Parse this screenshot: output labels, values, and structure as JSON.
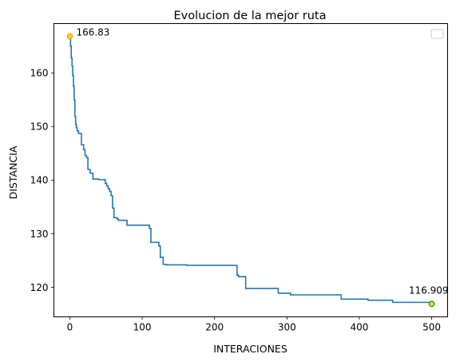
{
  "chart_data": {
    "type": "line",
    "title": "Evolucion de la mejor ruta",
    "xlabel": "INTERACIONES",
    "ylabel": "DISTANCIA",
    "xlim": [
      -22,
      522
    ],
    "ylim": [
      114.5,
      169.2
    ],
    "xticks": [
      0,
      100,
      200,
      300,
      400,
      500
    ],
    "yticks": [
      120,
      130,
      140,
      150,
      160
    ],
    "grid": false,
    "legend": "top-right (empty)",
    "series": [
      {
        "color": "#1f77b4",
        "step": true,
        "x": [
          0,
          1,
          2,
          3,
          4,
          5,
          6,
          7,
          8,
          9,
          10,
          12,
          16,
          19,
          21,
          23,
          25,
          28,
          32,
          36,
          40,
          49,
          51,
          53,
          55,
          57,
          59,
          61,
          65,
          67,
          72,
          79,
          94,
          110,
          112,
          114,
          123,
          125,
          127,
          129,
          133,
          162,
          231,
          233,
          243,
          288,
          305,
          375,
          412,
          446,
          500
        ],
        "y": [
          166.83,
          165.0,
          162.8,
          161.3,
          159.5,
          157.5,
          155.0,
          151.9,
          150.4,
          149.8,
          149.2,
          148.7,
          146.6,
          145.7,
          144.6,
          144.2,
          142.0,
          141.3,
          140.2,
          140.2,
          140.1,
          139.4,
          138.9,
          138.4,
          137.9,
          137.1,
          134.8,
          133.0,
          132.8,
          132.5,
          132.5,
          131.6,
          131.6,
          131.0,
          128.4,
          128.4,
          127.7,
          125.6,
          125.6,
          124.3,
          124.2,
          124.1,
          122.3,
          122.0,
          119.8,
          118.9,
          118.6,
          117.8,
          117.6,
          117.2,
          116.909
        ]
      }
    ],
    "markers": [
      {
        "x": 0,
        "y": 166.83,
        "fill": "#ffd700",
        "stroke": "#ff8c00"
      },
      {
        "x": 500,
        "y": 116.909,
        "fill": "#b0ff20",
        "stroke": "#2f5f00"
      }
    ],
    "annotations": [
      {
        "text": "166.83",
        "x": 0,
        "y": 166.83,
        "anchor": "start"
      },
      {
        "text": "116.909",
        "x": 500,
        "y": 116.909,
        "anchor": "end"
      }
    ]
  }
}
